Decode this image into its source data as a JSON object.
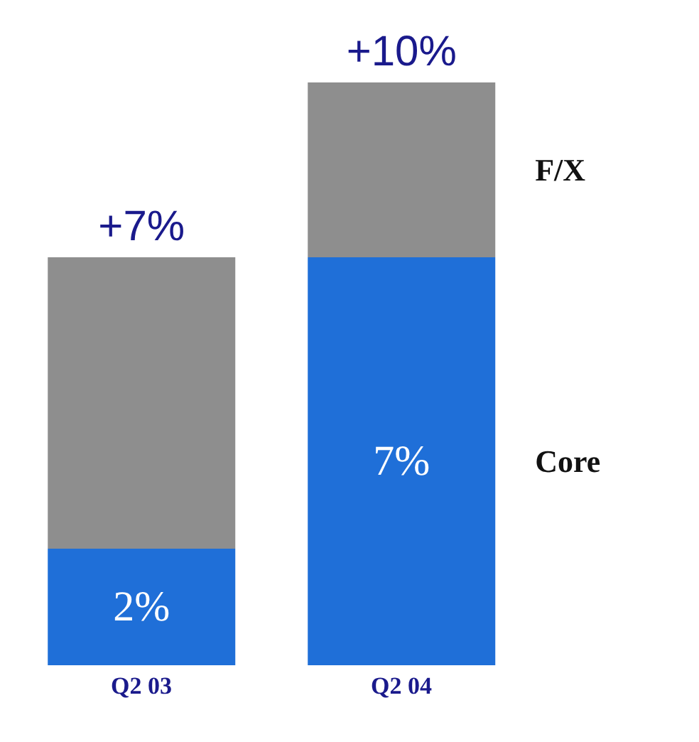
{
  "chart_data": {
    "type": "bar",
    "stacked": true,
    "categories": [
      "Q2 03",
      "Q2 04"
    ],
    "series": [
      {
        "name": "Core",
        "color": "#1f6fd8",
        "values": [
          2,
          7
        ],
        "value_labels": [
          "2%",
          "7%"
        ]
      },
      {
        "name": "F/X",
        "color": "#8e8e8e",
        "values": [
          5,
          3
        ]
      }
    ],
    "totals": [
      "+7%",
      "+10%"
    ],
    "tick_labels": "x",
    "legend": false
  }
}
